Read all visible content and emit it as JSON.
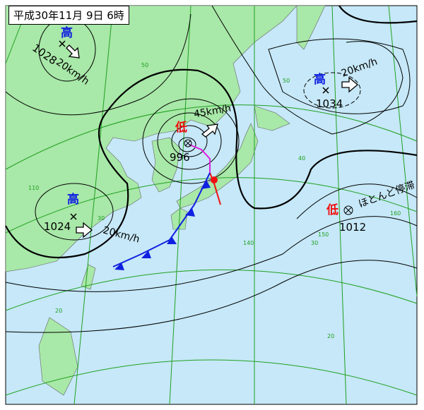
{
  "title": "平成30年11月 9日 6時",
  "colors": {
    "sea": "#c6e8f8",
    "land": "#a8e8a8",
    "grid": "#20a020",
    "high": "#1020e0",
    "low": "#f01010",
    "cold_front": "#1020e0",
    "warm_front": "#f01010",
    "occluded_front": "#e020e0"
  },
  "highs": [
    {
      "symbol": "高",
      "pressure": "1028",
      "speed": "20km/h"
    },
    {
      "symbol": "高",
      "pressure": "1034",
      "speed": "20km/h"
    },
    {
      "symbol": "高",
      "pressure": "1024",
      "speed": "20km/h"
    }
  ],
  "lows": [
    {
      "symbol": "低",
      "pressure": "996",
      "speed": "45km/h"
    },
    {
      "symbol": "低",
      "pressure": "1012",
      "speed": "ほとんど停滞"
    }
  ],
  "grid_labels": {
    "lat50": "50",
    "lat40": "40",
    "lat30": "30",
    "lat20": "20",
    "lat30b": "30",
    "lon110": "110",
    "lon140": "140",
    "lon150": "150",
    "lon160": "160"
  }
}
